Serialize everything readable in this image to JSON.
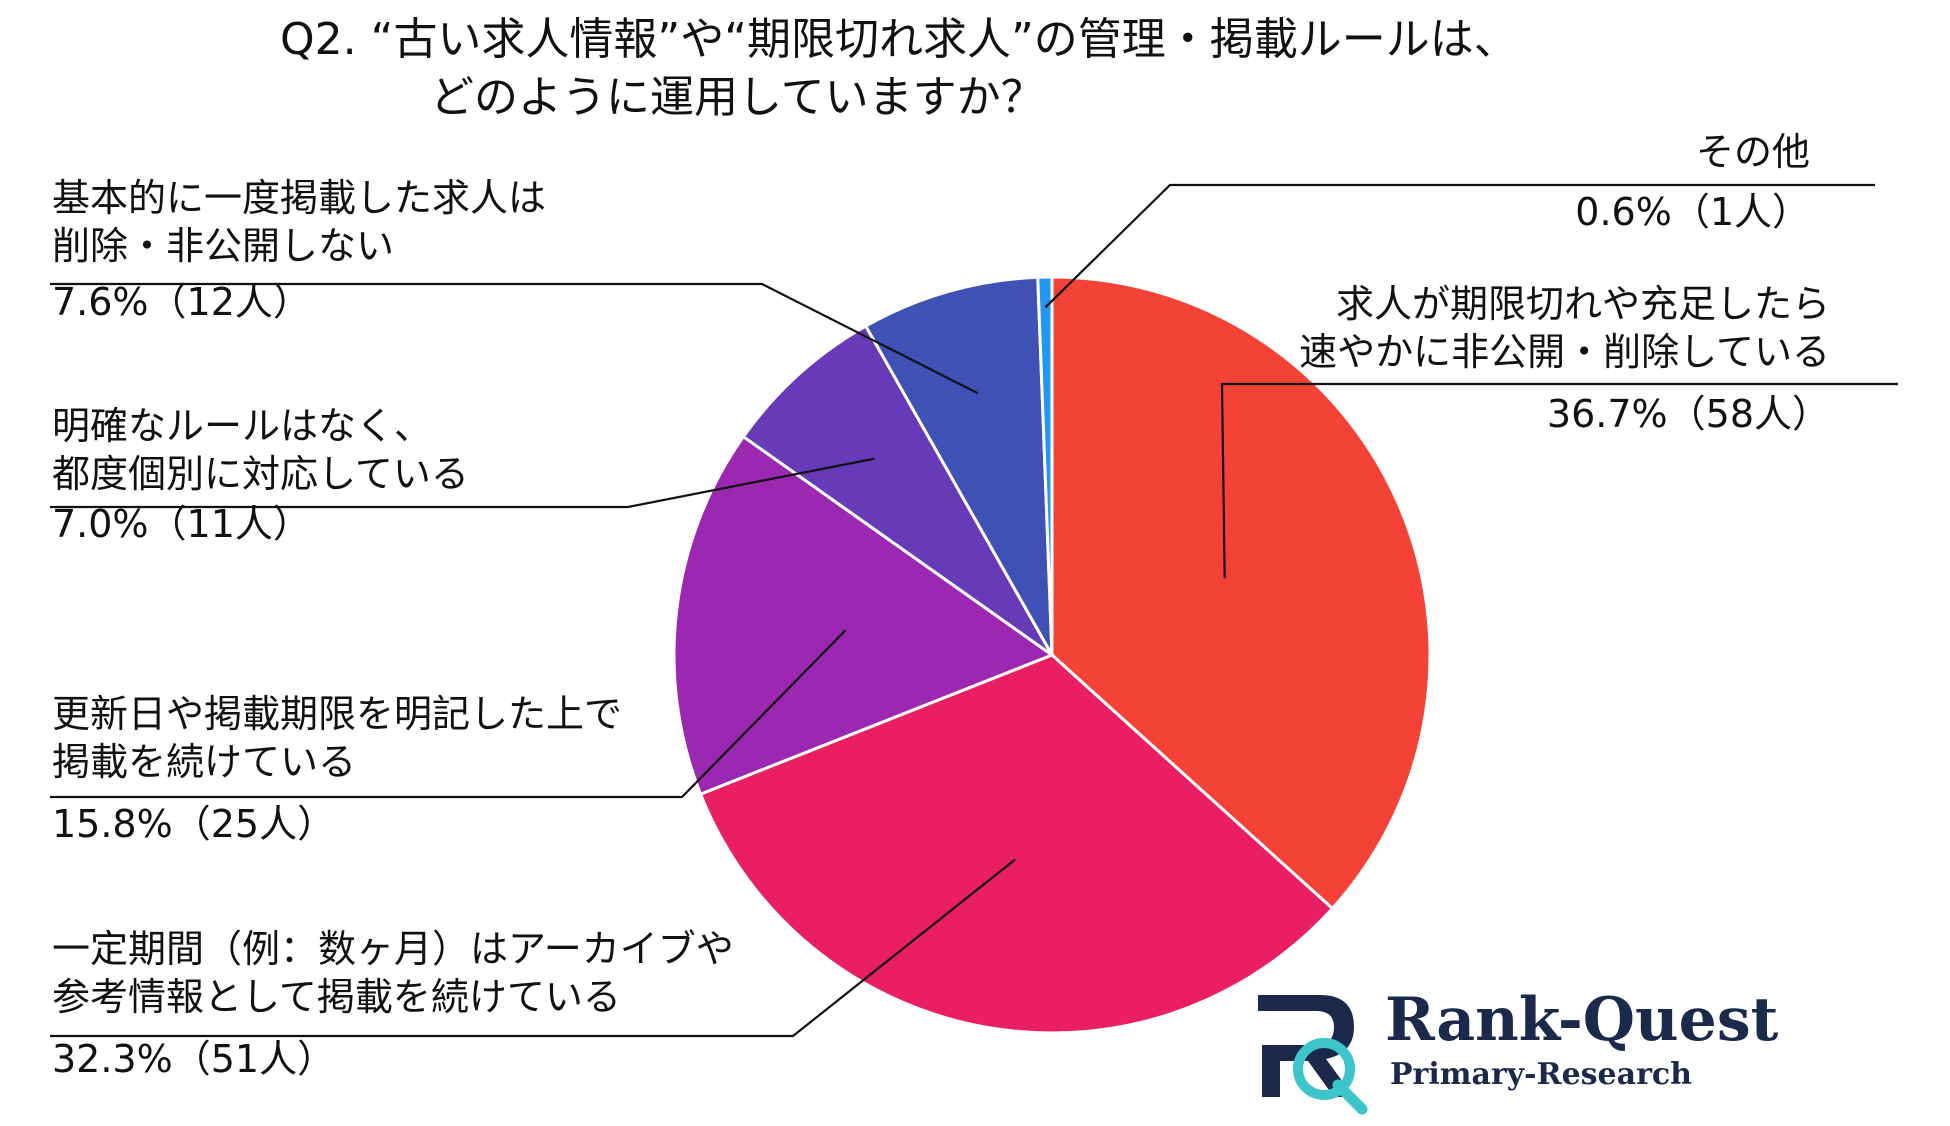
{
  "header": {
    "title_line1": "Q2. “古い求人情報”や“期限切れ求人”の管理・掲載ルールは、",
    "title_line2": "どのように運用していますか？"
  },
  "chart_data": {
    "type": "pie",
    "title": "Q2. “古い求人情報”や“期限切れ求人”の管理・掲載ルールは、どのように運用していますか？",
    "slices": [
      {
        "label_lines": [
          "求人が期限切れや充足したら",
          "速やかに非公開・削除している"
        ],
        "value_text": "36.7%（58人）",
        "value": 36.7,
        "count": 58,
        "color": "#f44336"
      },
      {
        "label_lines": [
          "一定期間（例：数ヶ月）はアーカイブや",
          "参考情報として掲載を続けている"
        ],
        "value_text": "32.3%（51人）",
        "value": 32.3,
        "count": 51,
        "color": "#e91e63"
      },
      {
        "label_lines": [
          "更新日や掲載期限を明記した上で",
          "掲載を続けている"
        ],
        "value_text": "15.8%（25人）",
        "value": 15.8,
        "count": 25,
        "color": "#9c27b0"
      },
      {
        "label_lines": [
          "明確なルールはなく、",
          "都度個別に対応している"
        ],
        "value_text": "7.0%（11人）",
        "value": 7.0,
        "count": 11,
        "color": "#673ab7"
      },
      {
        "label_lines": [
          "基本的に一度掲載した求人は",
          "削除・非公開しない"
        ],
        "value_text": "7.6%（12人）",
        "value": 7.6,
        "count": 12,
        "color": "#3f51b5"
      },
      {
        "label_lines": [
          "その他"
        ],
        "value_text": "0.6%（1人）",
        "value": 0.6,
        "count": 1,
        "color": "#2196f3"
      }
    ]
  },
  "logo": {
    "name": "Rank-Quest",
    "subtitle": "Primary-Research",
    "colors": {
      "navy": "#1b2a4a",
      "teal": "#3cc6cc"
    }
  }
}
